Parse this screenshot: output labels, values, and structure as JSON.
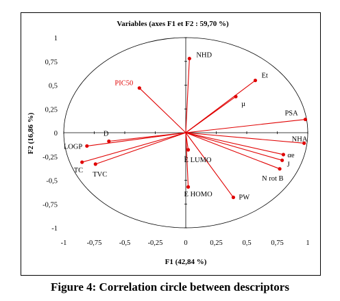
{
  "caption": "Figure 4: Correlation circle between descriptors",
  "chart_data": {
    "type": "scatter",
    "title": "Variables (axes F1 et F2 : 59,70 %)",
    "xlabel": "F1 (42,84 %)",
    "ylabel": "F2 (16,86 %)",
    "xlim": [
      -1,
      1
    ],
    "ylim": [
      -1,
      1
    ],
    "xticks": [
      -1,
      -0.75,
      -0.5,
      -0.25,
      0,
      0.25,
      0.5,
      0.75,
      1
    ],
    "yticks": [
      -1,
      -0.75,
      -0.5,
      -0.25,
      0,
      0.25,
      0.5,
      0.75,
      1
    ],
    "xtick_labels": [
      "-1",
      "-0,75",
      "-0,5",
      "-0,25",
      "0",
      "0,25",
      "0,5",
      "0,75",
      "1"
    ],
    "ytick_labels": [
      "-1",
      "-0,75",
      "-0,5",
      "-0,25",
      "0",
      "0,25",
      "0,5",
      "0,75",
      "1"
    ],
    "grid": false,
    "unit_circle": true,
    "line_color": "#e00000",
    "highlight_color": "#e00000",
    "label_color": "#000000",
    "points": [
      {
        "name": "NHD",
        "x": 0.03,
        "y": 0.78
      },
      {
        "name": "Et",
        "x": 0.57,
        "y": 0.55
      },
      {
        "name": "µ",
        "x": 0.41,
        "y": 0.38
      },
      {
        "name": "PIC50",
        "x": -0.38,
        "y": 0.47,
        "highlight": true
      },
      {
        "name": "PSA",
        "x": 0.98,
        "y": 0.14
      },
      {
        "name": "NHA",
        "x": 0.97,
        "y": -0.11
      },
      {
        "name": "αe",
        "x": 0.8,
        "y": -0.23
      },
      {
        "name": "J",
        "x": 0.79,
        "y": -0.29
      },
      {
        "name": "N rot B",
        "x": 0.77,
        "y": -0.38
      },
      {
        "name": "PW",
        "x": 0.39,
        "y": -0.68
      },
      {
        "name": "E HOMO",
        "x": 0.02,
        "y": -0.57
      },
      {
        "name": "E LUMO",
        "x": 0.02,
        "y": -0.18
      },
      {
        "name": "D",
        "x": -0.63,
        "y": -0.09
      },
      {
        "name": "LOGP",
        "x": -0.81,
        "y": -0.14
      },
      {
        "name": "TC",
        "x": -0.85,
        "y": -0.31
      },
      {
        "name": "TVC",
        "x": -0.74,
        "y": -0.33
      }
    ]
  }
}
